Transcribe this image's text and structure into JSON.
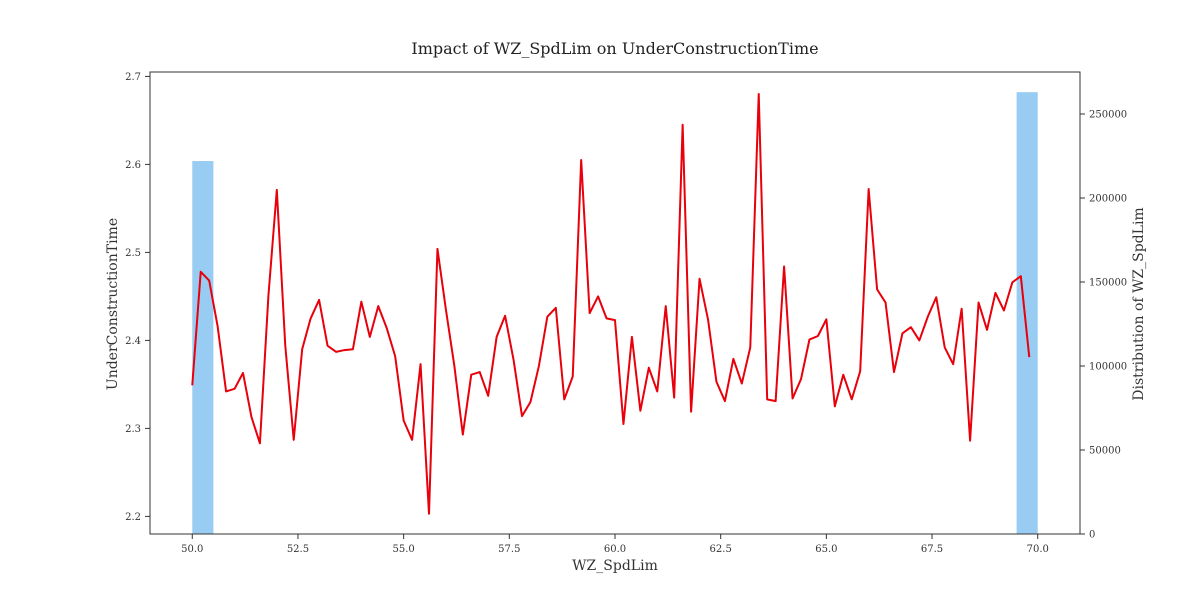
{
  "chart_data": {
    "type": "line",
    "title": "Impact of WZ_SpdLim on UnderConstructionTime",
    "xlabel": "WZ_SpdLim",
    "ylabel_left": "UnderConstructionTime",
    "ylabel_right": "Distribution of WZ_SpdLim",
    "xlim": [
      49.0,
      71.0
    ],
    "ylim_left": [
      2.18,
      2.705
    ],
    "ylim_right": [
      0,
      275000
    ],
    "x_ticks": [
      "50.0",
      "52.5",
      "55.0",
      "57.5",
      "60.0",
      "62.5",
      "65.0",
      "67.5",
      "70.0"
    ],
    "y_ticks_left": [
      "2.2",
      "2.3",
      "2.4",
      "2.5",
      "2.6",
      "2.7"
    ],
    "y_ticks_right": [
      "0",
      "50000",
      "100000",
      "150000",
      "200000",
      "250000"
    ],
    "histogram": {
      "name": "Distribution of WZ_SpdLim",
      "color": "#7fbfef",
      "bins": [
        {
          "x0": 50.0,
          "x1": 50.5,
          "count": 222000
        },
        {
          "x0": 69.5,
          "x1": 70.0,
          "count": 263000
        }
      ]
    },
    "line": {
      "name": "UnderConstructionTime",
      "color": "#e8000b",
      "x": [
        50.0,
        50.2,
        50.4,
        50.6,
        50.8,
        51.0,
        51.2,
        51.4,
        51.6,
        51.8,
        52.0,
        52.2,
        52.4,
        52.6,
        52.8,
        53.0,
        53.2,
        53.4,
        53.6,
        53.8,
        54.0,
        54.2,
        54.4,
        54.6,
        54.8,
        55.0,
        55.2,
        55.4,
        55.6,
        55.8,
        56.0,
        56.2,
        56.4,
        56.6,
        56.8,
        57.0,
        57.2,
        57.4,
        57.6,
        57.8,
        58.0,
        58.2,
        58.4,
        58.6,
        58.8,
        59.0,
        59.2,
        59.4,
        59.6,
        59.8,
        60.0,
        60.2,
        60.4,
        60.6,
        60.8,
        61.0,
        61.2,
        61.4,
        61.6,
        61.8,
        62.0,
        62.2,
        62.4,
        62.6,
        62.8,
        63.0,
        63.2,
        63.4,
        63.6,
        63.8,
        64.0,
        64.2,
        64.4,
        64.6,
        64.8,
        65.0,
        65.2,
        65.4,
        65.6,
        65.8,
        66.0,
        66.2,
        66.4,
        66.6,
        66.8,
        67.0,
        67.2,
        67.4,
        67.6,
        67.8,
        68.0,
        68.2,
        68.4,
        68.6,
        68.8,
        69.0,
        69.2,
        69.4,
        69.6,
        69.8
      ],
      "y": [
        2.349,
        2.478,
        2.468,
        2.416,
        2.342,
        2.345,
        2.363,
        2.313,
        2.283,
        2.45,
        2.571,
        2.394,
        2.287,
        2.39,
        2.425,
        2.446,
        2.394,
        2.387,
        2.389,
        2.39,
        2.444,
        2.404,
        2.439,
        2.414,
        2.382,
        2.309,
        2.287,
        2.373,
        2.203,
        2.504,
        2.435,
        2.371,
        2.293,
        2.361,
        2.364,
        2.337,
        2.404,
        2.428,
        2.378,
        2.314,
        2.33,
        2.371,
        2.427,
        2.437,
        2.333,
        2.359,
        2.605,
        2.431,
        2.45,
        2.425,
        2.423,
        2.305,
        2.404,
        2.32,
        2.369,
        2.342,
        2.439,
        2.335,
        2.645,
        2.319,
        2.47,
        2.424,
        2.353,
        2.331,
        2.379,
        2.351,
        2.392,
        2.68,
        2.333,
        2.331,
        2.484,
        2.334,
        2.356,
        2.401,
        2.405,
        2.424,
        2.325,
        2.361,
        2.333,
        2.365,
        2.572,
        2.458,
        2.443,
        2.364,
        2.408,
        2.415,
        2.4,
        2.427,
        2.449,
        2.392,
        2.373,
        2.436,
        2.286,
        2.443,
        2.412,
        2.454,
        2.434,
        2.466,
        2.473,
        2.381
      ]
    }
  }
}
